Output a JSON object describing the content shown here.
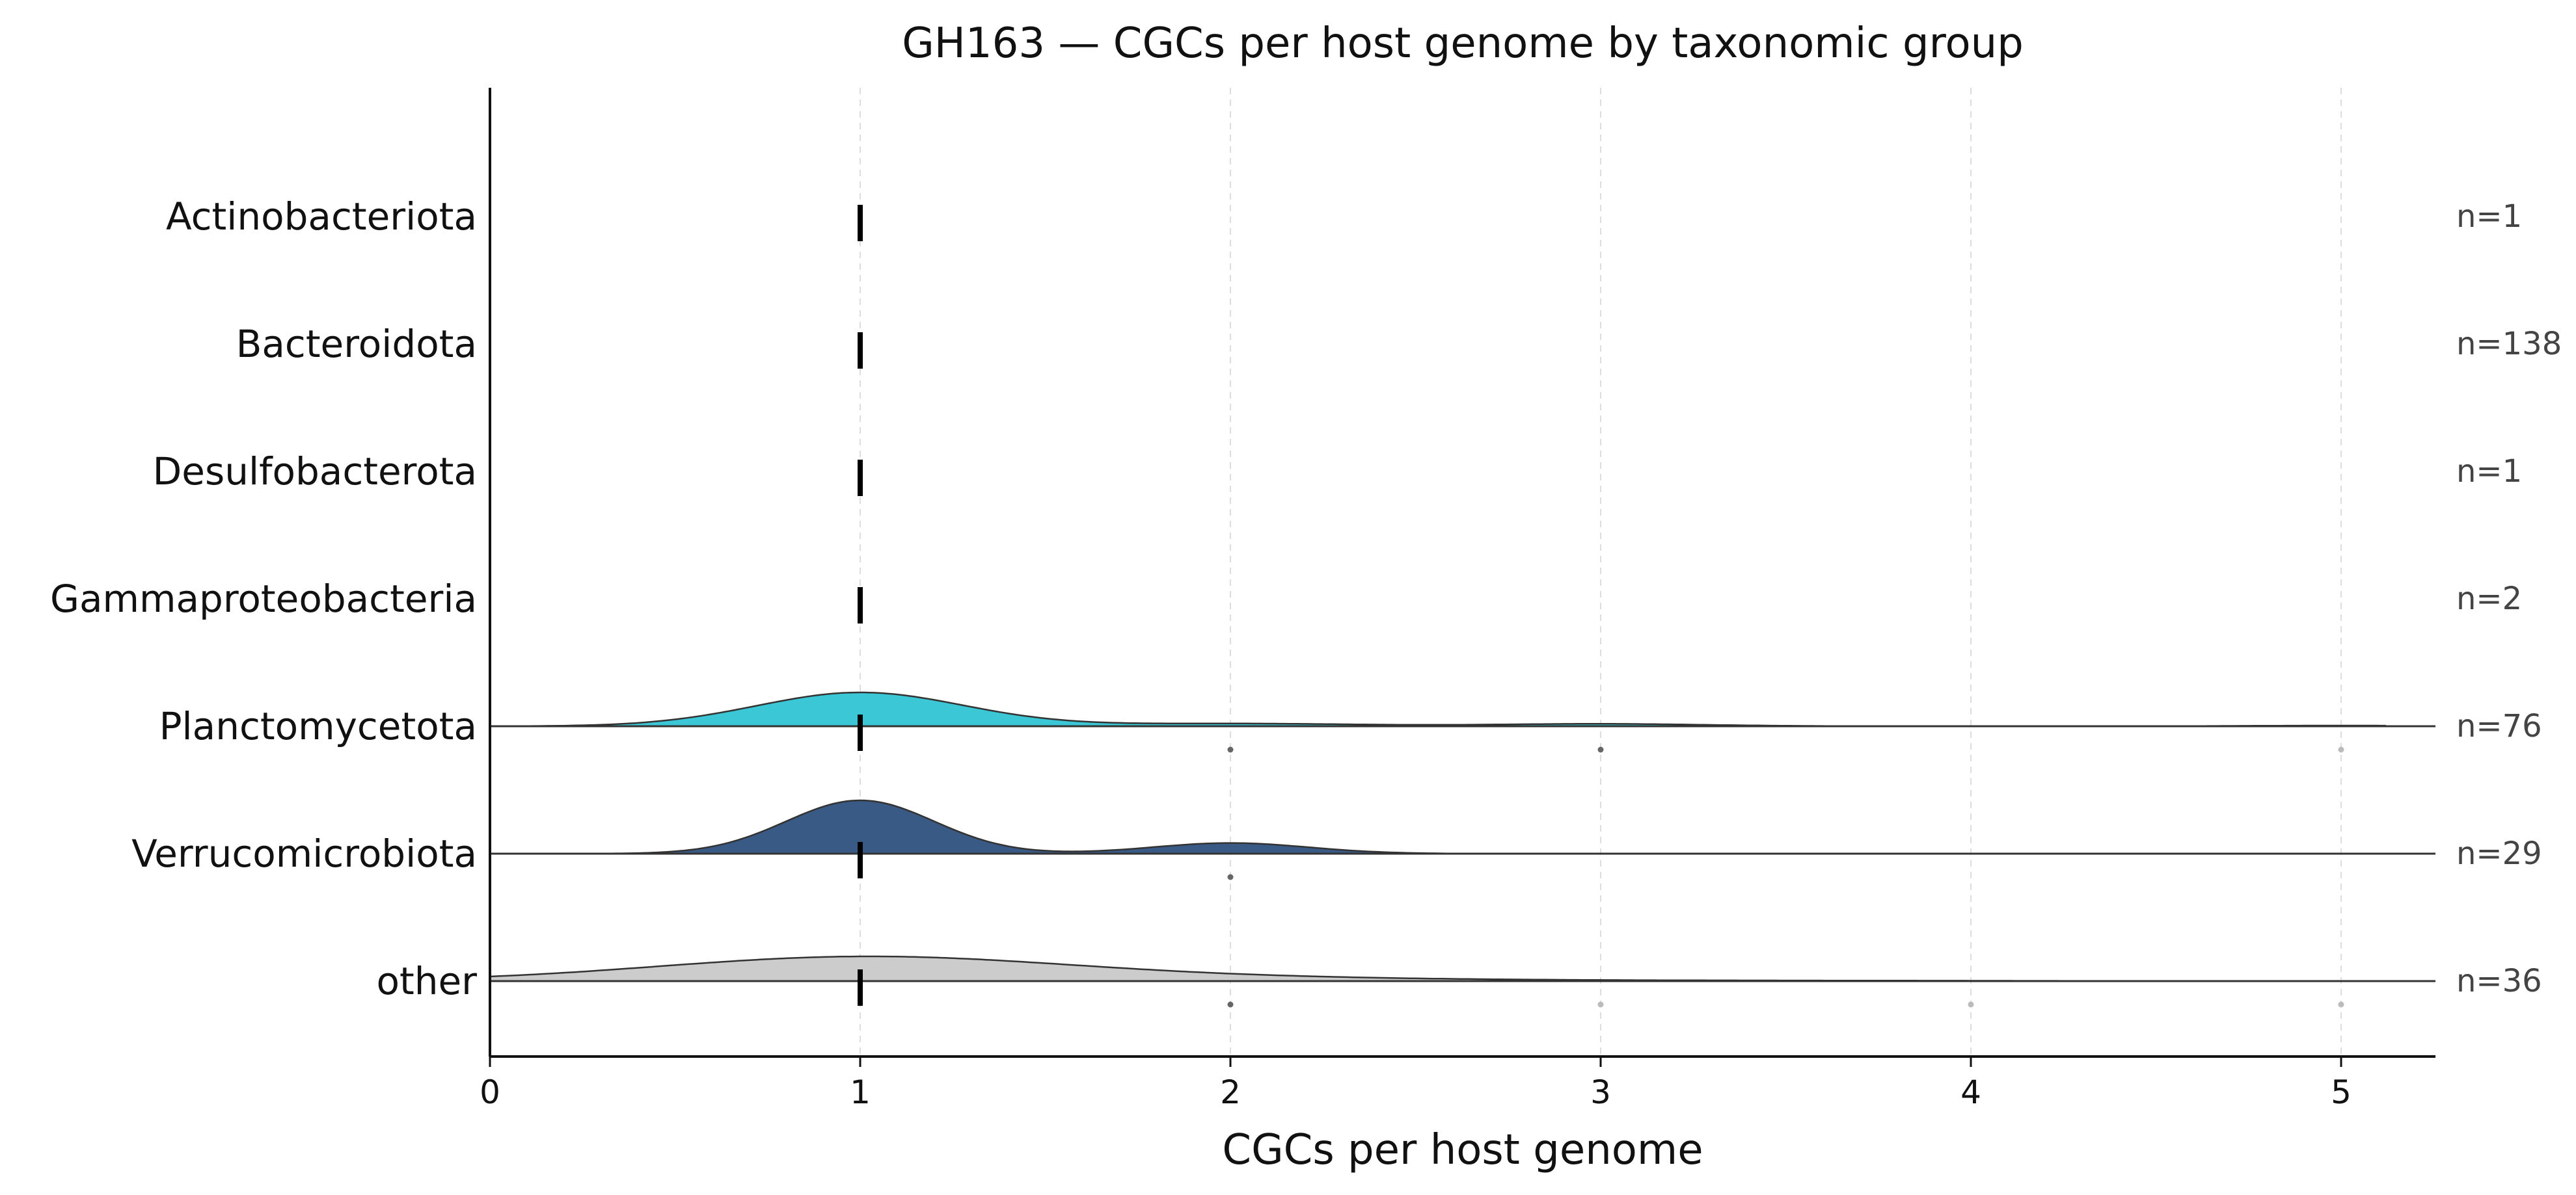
{
  "chart_data": {
    "type": "ridgeline",
    "title": "GH163 — CGCs per host genome by taxonomic group",
    "xlabel": "CGCs per host genome",
    "ylabel": "",
    "xlim": [
      0,
      5.25
    ],
    "xticks": [
      0,
      1,
      2,
      3,
      4,
      5
    ],
    "grid": "vertical dashed",
    "legend": "none",
    "median_marker": "vertical bar at median",
    "groups": [
      {
        "name": "Actinobacteriota",
        "n_label": "n=1",
        "n": 1,
        "median": 1,
        "color": null,
        "density": null,
        "outliers": []
      },
      {
        "name": "Bacteroidota",
        "n_label": "n=138",
        "n": 138,
        "median": 1,
        "color": null,
        "density": null,
        "outliers": []
      },
      {
        "name": "Desulfobacterota",
        "n_label": "n=1",
        "n": 1,
        "median": 1,
        "color": null,
        "density": null,
        "outliers": []
      },
      {
        "name": "Gammaproteobacteria",
        "n_label": "n=2",
        "n": 2,
        "median": 1,
        "color": null,
        "density": null,
        "outliers": []
      },
      {
        "name": "Planctomycetota",
        "n_label": "n=76",
        "n": 76,
        "median": 1,
        "color": "#3bc7d6",
        "density": [
          {
            "mu": 1.0,
            "sigma": 0.28,
            "w": 1.0
          },
          {
            "mu": 2.0,
            "sigma": 0.35,
            "w": 0.08
          },
          {
            "mu": 3.0,
            "sigma": 0.28,
            "w": 0.07
          },
          {
            "mu": 5.0,
            "sigma": 0.25,
            "w": 0.02
          }
        ],
        "outliers": [
          {
            "x": 2,
            "shade": "dark"
          },
          {
            "x": 3,
            "shade": "dark"
          },
          {
            "x": 5,
            "shade": "light"
          }
        ]
      },
      {
        "name": "Verrucomicrobiota",
        "n_label": "n=29",
        "n": 29,
        "median": 1,
        "color": "#3a5a86",
        "density": [
          {
            "mu": 1.0,
            "sigma": 0.2,
            "w": 1.0
          },
          {
            "mu": 2.0,
            "sigma": 0.21,
            "w": 0.2
          }
        ],
        "outliers": [
          {
            "x": 2,
            "shade": "dark"
          }
        ]
      },
      {
        "name": "other",
        "n_label": "n=36",
        "n": 36,
        "median": 1,
        "color": "#cccccc",
        "density": [
          {
            "mu": 1.0,
            "sigma": 0.55,
            "w": 1.0
          },
          {
            "mu": 2.0,
            "sigma": 0.6,
            "w": 0.12
          },
          {
            "mu": 3.5,
            "sigma": 0.6,
            "w": 0.02
          }
        ],
        "outliers": [
          {
            "x": 2,
            "shade": "dark"
          },
          {
            "x": 3,
            "shade": "light"
          },
          {
            "x": 4,
            "shade": "light"
          },
          {
            "x": 5,
            "shade": "light"
          }
        ]
      }
    ]
  }
}
